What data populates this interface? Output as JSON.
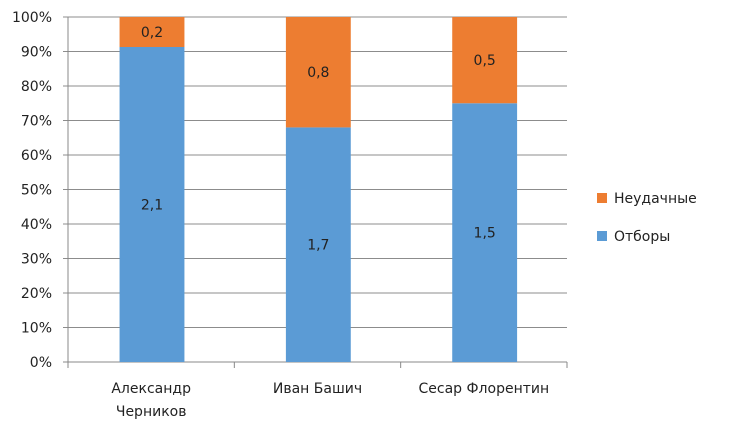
{
  "chart_data": {
    "type": "bar",
    "stacked": "percent",
    "categories": [
      "Александр Черников",
      "Иван Башич",
      "Сесар Флорентин"
    ],
    "category_lines": [
      [
        "Александр",
        "Черников"
      ],
      [
        "Иван Башич"
      ],
      [
        "Сесар Флорентин"
      ]
    ],
    "series": [
      {
        "name": "Отборы",
        "values": [
          2.1,
          1.7,
          1.5
        ],
        "labels": [
          "2,1",
          "1,7",
          "1,5"
        ],
        "color": "#5B9BD5"
      },
      {
        "name": "Неудачные",
        "values": [
          0.2,
          0.8,
          0.5
        ],
        "labels": [
          "0,2",
          "0,8",
          "0,5"
        ],
        "color": "#ED7D31"
      }
    ],
    "yticks": [
      "0%",
      "10%",
      "20%",
      "30%",
      "40%",
      "50%",
      "60%",
      "70%",
      "80%",
      "90%",
      "100%"
    ],
    "ylim": [
      0,
      100
    ],
    "grid": true,
    "legend": {
      "placement": "right",
      "entries": [
        "Неудачные",
        "Отборы"
      ]
    }
  }
}
